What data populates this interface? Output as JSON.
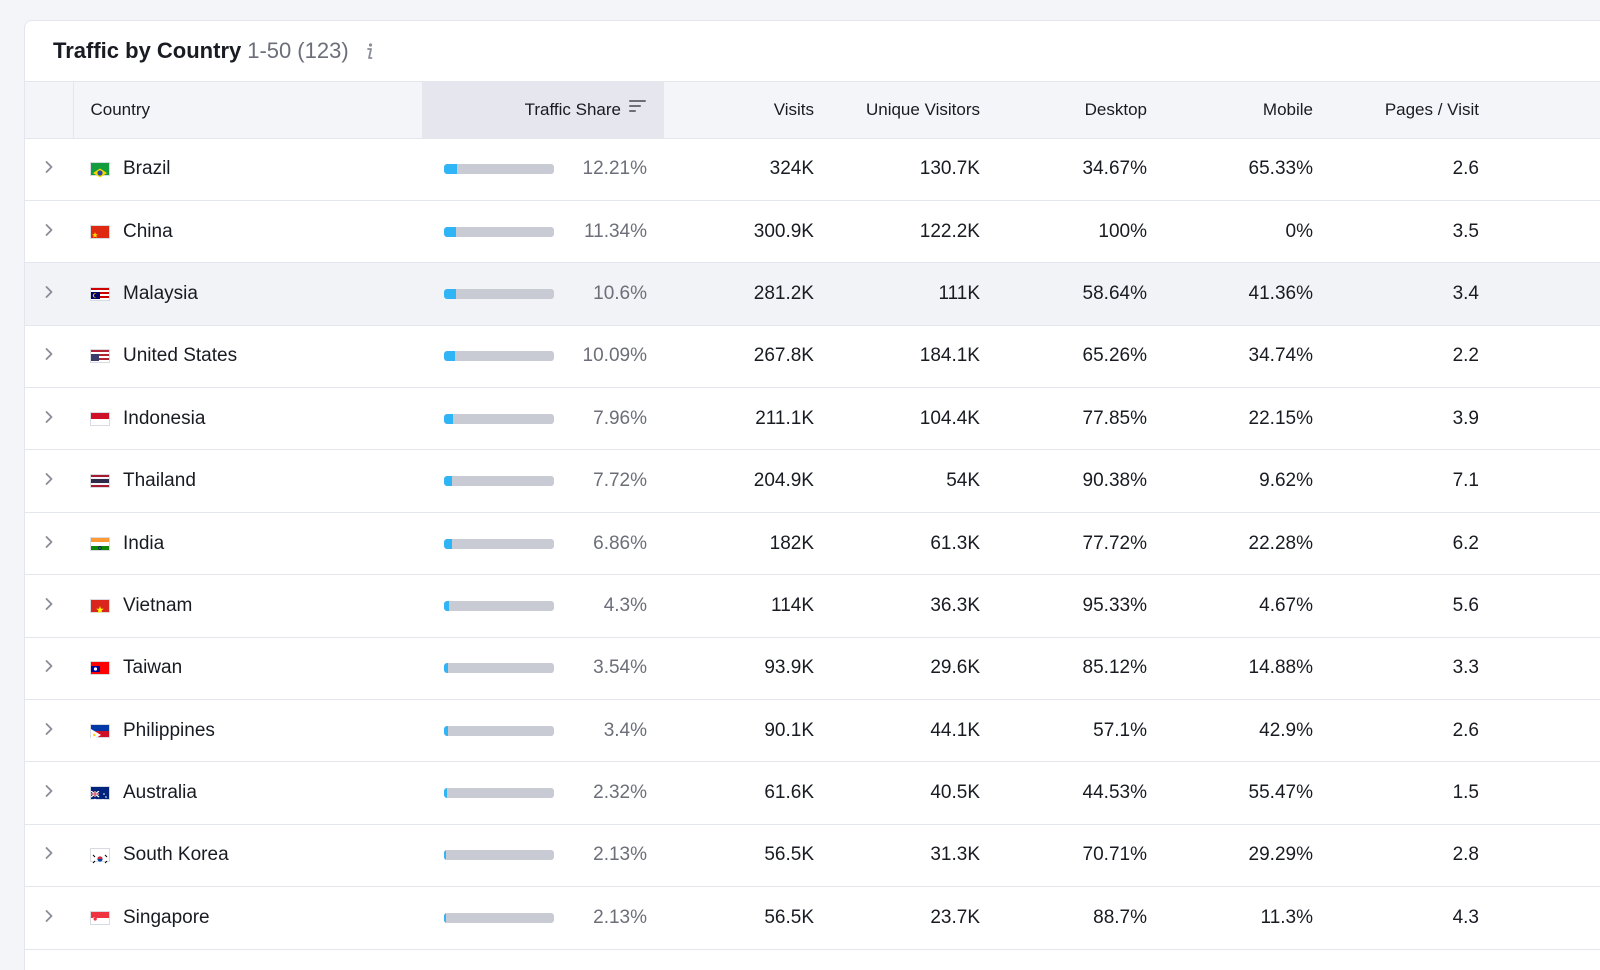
{
  "header": {
    "title": "Traffic by Country",
    "range": "1-50",
    "count": "(123)"
  },
  "columns": {
    "country": "Country",
    "traffic_share": "Traffic Share",
    "visits": "Visits",
    "unique_visitors": "Unique Visitors",
    "desktop": "Desktop",
    "mobile": "Mobile",
    "pages_visit": "Pages / Visit"
  },
  "colors": {
    "bar_fill": "#2fb5f6",
    "bar_track": "#c8cbd3",
    "header_bg": "#f4f5f9"
  },
  "rows": [
    {
      "country": "Brazil",
      "flag": "br",
      "share": "12.21%",
      "share_value": 12.21,
      "visits": "324K",
      "unique": "130.7K",
      "desktop": "34.67%",
      "mobile": "65.33%",
      "pages": "2.6"
    },
    {
      "country": "China",
      "flag": "cn",
      "share": "11.34%",
      "share_value": 11.34,
      "visits": "300.9K",
      "unique": "122.2K",
      "desktop": "100%",
      "mobile": "0%",
      "pages": "3.5"
    },
    {
      "country": "Malaysia",
      "flag": "my",
      "share": "10.6%",
      "share_value": 10.6,
      "visits": "281.2K",
      "unique": "111K",
      "desktop": "58.64%",
      "mobile": "41.36%",
      "pages": "3.4"
    },
    {
      "country": "United States",
      "flag": "us",
      "share": "10.09%",
      "share_value": 10.09,
      "visits": "267.8K",
      "unique": "184.1K",
      "desktop": "65.26%",
      "mobile": "34.74%",
      "pages": "2.2"
    },
    {
      "country": "Indonesia",
      "flag": "id",
      "share": "7.96%",
      "share_value": 7.96,
      "visits": "211.1K",
      "unique": "104.4K",
      "desktop": "77.85%",
      "mobile": "22.15%",
      "pages": "3.9"
    },
    {
      "country": "Thailand",
      "flag": "th",
      "share": "7.72%",
      "share_value": 7.72,
      "visits": "204.9K",
      "unique": "54K",
      "desktop": "90.38%",
      "mobile": "9.62%",
      "pages": "7.1"
    },
    {
      "country": "India",
      "flag": "in",
      "share": "6.86%",
      "share_value": 6.86,
      "visits": "182K",
      "unique": "61.3K",
      "desktop": "77.72%",
      "mobile": "22.28%",
      "pages": "6.2"
    },
    {
      "country": "Vietnam",
      "flag": "vn",
      "share": "4.3%",
      "share_value": 4.3,
      "visits": "114K",
      "unique": "36.3K",
      "desktop": "95.33%",
      "mobile": "4.67%",
      "pages": "5.6"
    },
    {
      "country": "Taiwan",
      "flag": "tw",
      "share": "3.54%",
      "share_value": 3.54,
      "visits": "93.9K",
      "unique": "29.6K",
      "desktop": "85.12%",
      "mobile": "14.88%",
      "pages": "3.3"
    },
    {
      "country": "Philippines",
      "flag": "ph",
      "share": "3.4%",
      "share_value": 3.4,
      "visits": "90.1K",
      "unique": "44.1K",
      "desktop": "57.1%",
      "mobile": "42.9%",
      "pages": "2.6"
    },
    {
      "country": "Australia",
      "flag": "au",
      "share": "2.32%",
      "share_value": 2.32,
      "visits": "61.6K",
      "unique": "40.5K",
      "desktop": "44.53%",
      "mobile": "55.47%",
      "pages": "1.5"
    },
    {
      "country": "South Korea",
      "flag": "kr",
      "share": "2.13%",
      "share_value": 2.13,
      "visits": "56.5K",
      "unique": "31.3K",
      "desktop": "70.71%",
      "mobile": "29.29%",
      "pages": "2.8"
    },
    {
      "country": "Singapore",
      "flag": "sg",
      "share": "2.13%",
      "share_value": 2.13,
      "visits": "56.5K",
      "unique": "23.7K",
      "desktop": "88.7%",
      "mobile": "11.3%",
      "pages": "4.3"
    }
  ]
}
